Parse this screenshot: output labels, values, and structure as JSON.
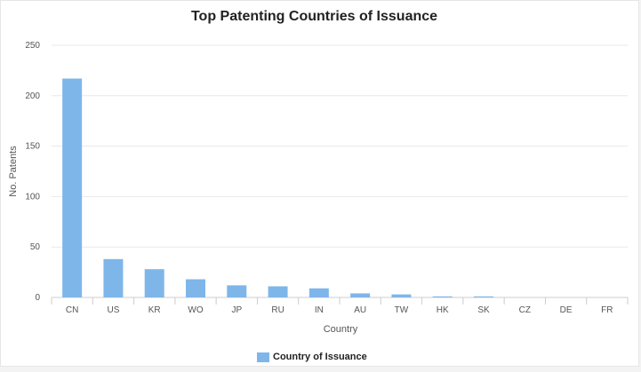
{
  "chart_data": {
    "type": "bar",
    "title": "Top Patenting Countries of Issuance",
    "xlabel": "Country",
    "ylabel": "No. Patents",
    "ylim": [
      0,
      250
    ],
    "yticks": [
      0,
      50,
      100,
      150,
      200,
      250
    ],
    "categories": [
      "CN",
      "US",
      "KR",
      "WO",
      "JP",
      "RU",
      "IN",
      "AU",
      "TW",
      "HK",
      "SK",
      "CZ",
      "DE",
      "FR"
    ],
    "series": [
      {
        "name": "Country of Issuance",
        "values": [
          217,
          38,
          28,
          18,
          12,
          11,
          9,
          4,
          3,
          1,
          1,
          0,
          0,
          0
        ]
      }
    ],
    "grid": true,
    "legend_position": "bottom-center",
    "colors": {
      "bar": "#7eb6ea",
      "grid": "#e8e8e8",
      "axis": "#cccccc"
    }
  }
}
